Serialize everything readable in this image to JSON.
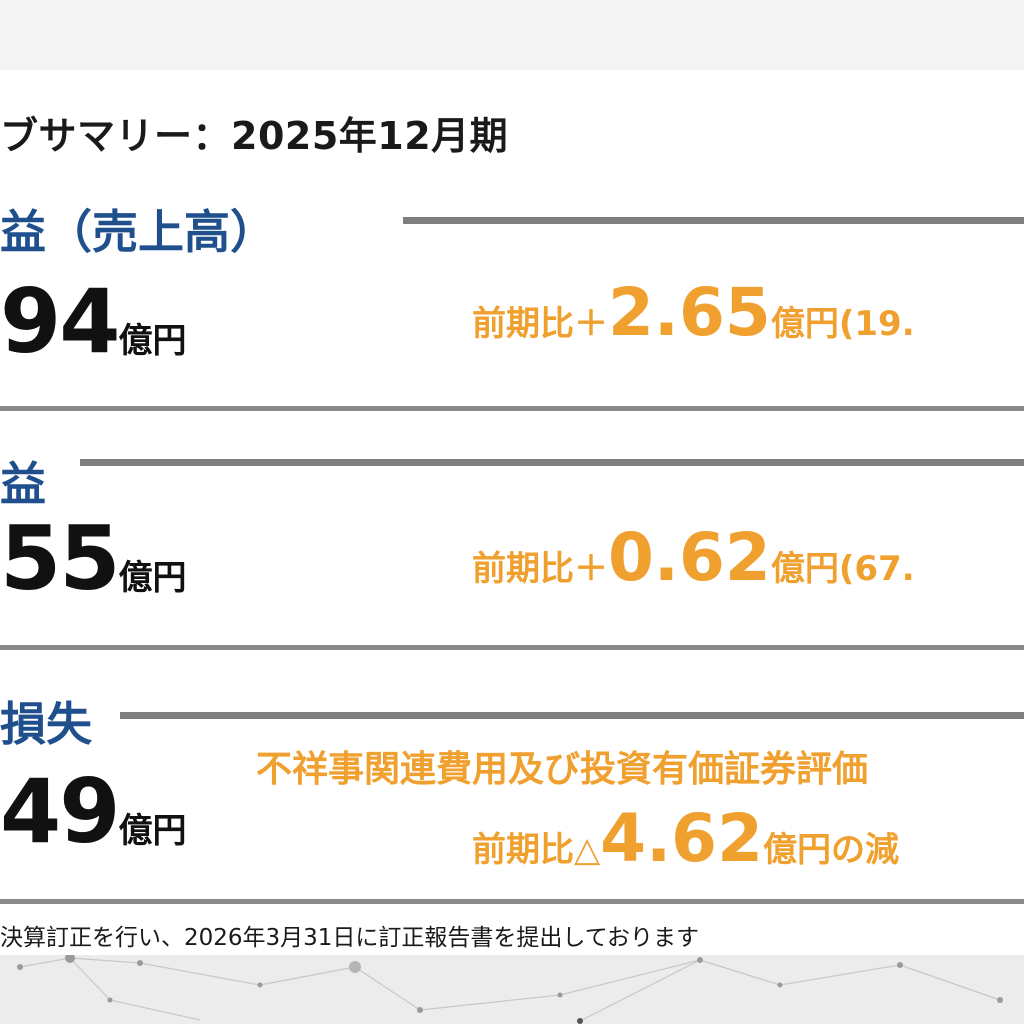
{
  "title": "ブサマリー：2025年12月期",
  "sections": [
    {
      "label": "益（売上高）",
      "value": "94",
      "unit": "億円",
      "cmp_prefix": "前期比＋",
      "cmp_value": "2.65",
      "cmp_suffix": "億円(19."
    },
    {
      "label": "益",
      "value": "55",
      "unit": "億円",
      "cmp_prefix": "前期比＋",
      "cmp_value": "0.62",
      "cmp_suffix": "億円(67."
    },
    {
      "label": "損失",
      "value": "49",
      "unit": "億円",
      "note": "不祥事関連費用及び投資有価証券評価",
      "cmp_prefix": "前期比△",
      "cmp_value": "4.62",
      "cmp_suffix": "億円の減"
    }
  ],
  "footnote": "決算訂正を行い、2026年3月31日に訂正報告書を提出しております",
  "colors": {
    "accent_orange": "#f0a02e",
    "label_blue": "#1f4f8c",
    "rule_gray": "#7f7f7f"
  }
}
